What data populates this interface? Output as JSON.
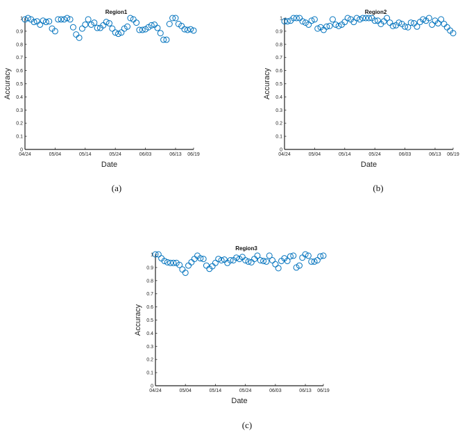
{
  "chart_data": [
    {
      "type": "scatter",
      "caption": "(a)",
      "title": "Region1",
      "xlabel": "Date",
      "ylabel": "Accuracy",
      "ylim": [
        0,
        1
      ],
      "yticks": [
        "0",
        "0.1",
        "0.2",
        "0.3",
        "0.4",
        "0.5",
        "0.6",
        "0.7",
        "0.8",
        "0.9",
        "1"
      ],
      "xticks": [
        "04/24",
        "05/04",
        "05/14",
        "05/24",
        "06/03",
        "06/13",
        "06/19"
      ],
      "grid": false,
      "marker_color": "#0072BD",
      "values": [
        0.99,
        1.0,
        0.99,
        0.97,
        0.975,
        0.95,
        0.98,
        0.97,
        0.975,
        0.92,
        0.9,
        0.99,
        0.99,
        0.99,
        1.0,
        0.99,
        0.93,
        0.875,
        0.85,
        0.92,
        0.95,
        0.99,
        0.95,
        0.965,
        0.925,
        0.925,
        0.945,
        0.97,
        0.96,
        0.92,
        0.89,
        0.88,
        0.89,
        0.92,
        0.935,
        1.0,
        0.99,
        0.965,
        0.91,
        0.91,
        0.915,
        0.93,
        0.945,
        0.95,
        0.925,
        0.885,
        0.835,
        0.835,
        0.955,
        1.0,
        1.0,
        0.955,
        0.94,
        0.915,
        0.91,
        0.915,
        0.905
      ]
    },
    {
      "type": "scatter",
      "caption": "(b)",
      "title": "Region2",
      "xlabel": "Date",
      "ylabel": "Accuracy",
      "ylim": [
        0,
        1
      ],
      "yticks": [
        "0",
        "0.1",
        "0.2",
        "0.3",
        "0.4",
        "0.5",
        "0.6",
        "0.7",
        "0.8",
        "0.9",
        "1"
      ],
      "xticks": [
        "04/24",
        "05/04",
        "05/14",
        "05/24",
        "06/03",
        "06/13",
        "06/19"
      ],
      "grid": false,
      "marker_color": "#0072BD",
      "values": [
        0.975,
        0.975,
        0.98,
        1.0,
        1.0,
        1.0,
        0.975,
        0.965,
        0.95,
        0.98,
        0.99,
        0.92,
        0.93,
        0.91,
        0.935,
        0.94,
        0.99,
        0.95,
        0.94,
        0.95,
        0.97,
        1.0,
        0.99,
        0.97,
        1.0,
        0.99,
        1.0,
        1.0,
        1.0,
        1.0,
        0.98,
        0.98,
        0.955,
        0.975,
        1.0,
        0.965,
        0.94,
        0.945,
        0.965,
        0.955,
        0.935,
        0.93,
        0.965,
        0.96,
        0.935,
        0.97,
        0.99,
        0.98,
        1.0,
        0.95,
        0.98,
        0.96,
        0.99,
        0.955,
        0.93,
        0.905,
        0.885
      ]
    },
    {
      "type": "scatter",
      "caption": "(c)",
      "title": "Region3",
      "xlabel": "Date",
      "ylabel": "Accuracy",
      "ylim": [
        0,
        1
      ],
      "yticks": [
        "0",
        "0.1",
        "0.2",
        "0.3",
        "0.4",
        "0.5",
        "0.6",
        "0.7",
        "0.8",
        "0.9",
        "1"
      ],
      "xticks": [
        "04/24",
        "05/04",
        "05/14",
        "05/24",
        "06/03",
        "06/13",
        "06/19"
      ],
      "grid": false,
      "marker_color": "#0072BD",
      "values": [
        1.0,
        1.0,
        0.97,
        0.95,
        0.94,
        0.935,
        0.935,
        0.935,
        0.92,
        0.885,
        0.86,
        0.915,
        0.94,
        0.965,
        0.99,
        0.97,
        0.965,
        0.915,
        0.89,
        0.91,
        0.935,
        0.965,
        0.955,
        0.96,
        0.935,
        0.955,
        0.955,
        0.975,
        0.965,
        0.98,
        0.955,
        0.945,
        0.94,
        0.965,
        0.99,
        0.955,
        0.95,
        0.945,
        0.99,
        0.955,
        0.925,
        0.895,
        0.95,
        0.97,
        0.95,
        0.985,
        0.99,
        0.9,
        0.915,
        0.975,
        1.0,
        0.99,
        0.945,
        0.945,
        0.955,
        0.985,
        0.99
      ]
    }
  ]
}
